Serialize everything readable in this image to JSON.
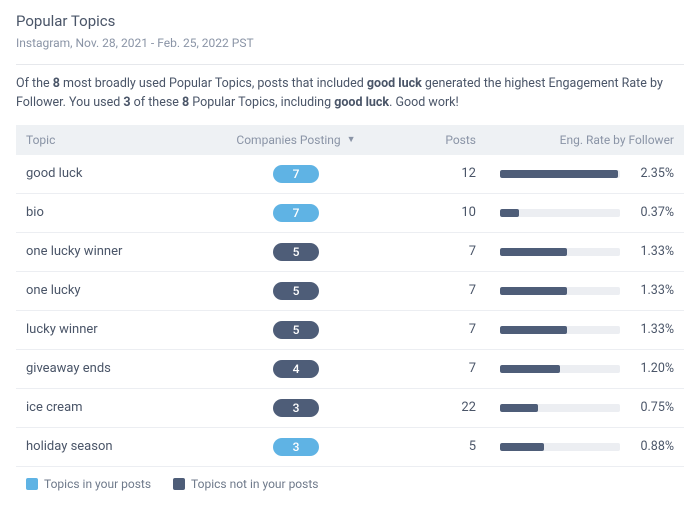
{
  "header": {
    "title": "Popular Topics",
    "subtitle": "Instagram, Nov. 28, 2021 - Feb. 25, 2022 PST"
  },
  "summary": {
    "prefix": "Of the ",
    "total": "8",
    "mid1": " most broadly used Popular Topics, posts that included ",
    "top_topic": "good luck",
    "mid2": " generated the highest Engagement Rate by Follower. You used ",
    "used": "3",
    "mid3": " of these ",
    "total2": "8",
    "mid4": " Popular Topics, including ",
    "top_topic2": "good luck",
    "suffix": ". Good work!"
  },
  "columns": {
    "topic": "Topic",
    "companies": "Companies Posting",
    "posts": "Posts",
    "engagement": "Eng. Rate by Follower"
  },
  "colors": {
    "pill_in_posts": "#5fb3e4",
    "pill_not_in_posts": "#4e5d78",
    "bar_fill": "#4e5d78",
    "bar_track": "#eceef2",
    "header_bg": "#eef1f4",
    "text_muted": "#8a94a6"
  },
  "eng_bar": {
    "max": 2.4
  },
  "rows": [
    {
      "topic": "good luck",
      "companies": 7,
      "in_posts": true,
      "posts": 12,
      "eng": 2.35,
      "eng_label": "2.35%"
    },
    {
      "topic": "bio",
      "companies": 7,
      "in_posts": true,
      "posts": 10,
      "eng": 0.37,
      "eng_label": "0.37%"
    },
    {
      "topic": "one lucky winner",
      "companies": 5,
      "in_posts": false,
      "posts": 7,
      "eng": 1.33,
      "eng_label": "1.33%"
    },
    {
      "topic": "one lucky",
      "companies": 5,
      "in_posts": false,
      "posts": 7,
      "eng": 1.33,
      "eng_label": "1.33%"
    },
    {
      "topic": "lucky winner",
      "companies": 5,
      "in_posts": false,
      "posts": 7,
      "eng": 1.33,
      "eng_label": "1.33%"
    },
    {
      "topic": "giveaway ends",
      "companies": 4,
      "in_posts": false,
      "posts": 7,
      "eng": 1.2,
      "eng_label": "1.20%"
    },
    {
      "topic": "ice cream",
      "companies": 3,
      "in_posts": false,
      "posts": 22,
      "eng": 0.75,
      "eng_label": "0.75%"
    },
    {
      "topic": "holiday season",
      "companies": 3,
      "in_posts": true,
      "posts": 5,
      "eng": 0.88,
      "eng_label": "0.88%"
    }
  ],
  "legend": {
    "in_posts": "Topics in your posts",
    "not_in_posts": "Topics not in your posts"
  }
}
